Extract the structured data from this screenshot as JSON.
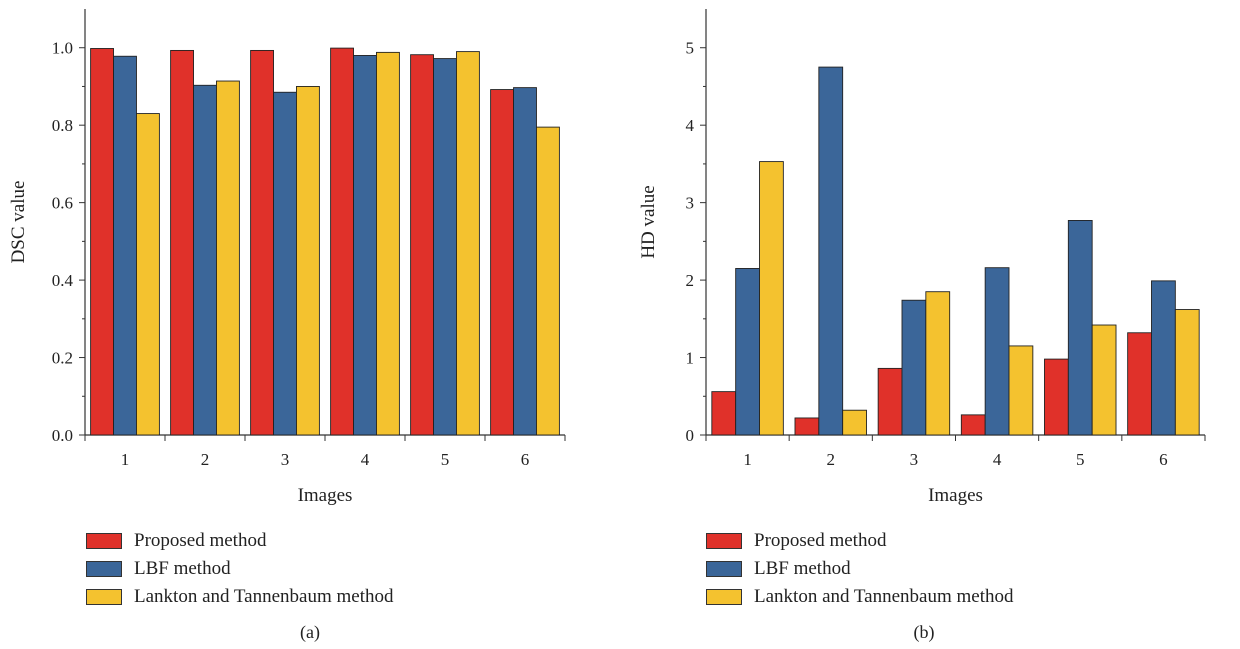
{
  "chart_data": [
    {
      "type": "bar",
      "panel_label": "(a)",
      "xlabel": "Images",
      "ylabel": "DSC value",
      "categories": [
        "1",
        "2",
        "3",
        "4",
        "5",
        "6"
      ],
      "ylim": [
        0,
        1.1
      ],
      "yticks": [
        "0.0",
        "0.2",
        "0.4",
        "0.6",
        "0.8",
        "1.0"
      ],
      "series": [
        {
          "name": "Proposed method",
          "color": "#e0312a",
          "values": [
            0.998,
            0.993,
            0.993,
            0.999,
            0.982,
            0.892
          ]
        },
        {
          "name": "LBF method",
          "color": "#3b6699",
          "values": [
            0.978,
            0.903,
            0.885,
            0.98,
            0.972,
            0.897
          ]
        },
        {
          "name": "Lankton and Tannenbaum method",
          "color": "#f4c22f",
          "values": [
            0.83,
            0.914,
            0.9,
            0.988,
            0.99,
            0.795
          ]
        }
      ],
      "legend_position": "bottom"
    },
    {
      "type": "bar",
      "panel_label": "(b)",
      "xlabel": "Images",
      "ylabel": "HD value",
      "categories": [
        "1",
        "2",
        "3",
        "4",
        "5",
        "6"
      ],
      "ylim": [
        0,
        5.5
      ],
      "yticks": [
        "0",
        "1",
        "2",
        "3",
        "4",
        "5"
      ],
      "series": [
        {
          "name": "Proposed method",
          "color": "#e0312a",
          "values": [
            0.56,
            0.22,
            0.86,
            0.26,
            0.98,
            1.32
          ]
        },
        {
          "name": "LBF method",
          "color": "#3b6699",
          "values": [
            2.15,
            4.75,
            1.74,
            2.16,
            2.77,
            1.99
          ]
        },
        {
          "name": "Lankton and Tannenbaum method",
          "color": "#f4c22f",
          "values": [
            3.53,
            0.32,
            1.85,
            1.15,
            1.42,
            1.62
          ]
        }
      ],
      "legend_position": "bottom"
    }
  ]
}
